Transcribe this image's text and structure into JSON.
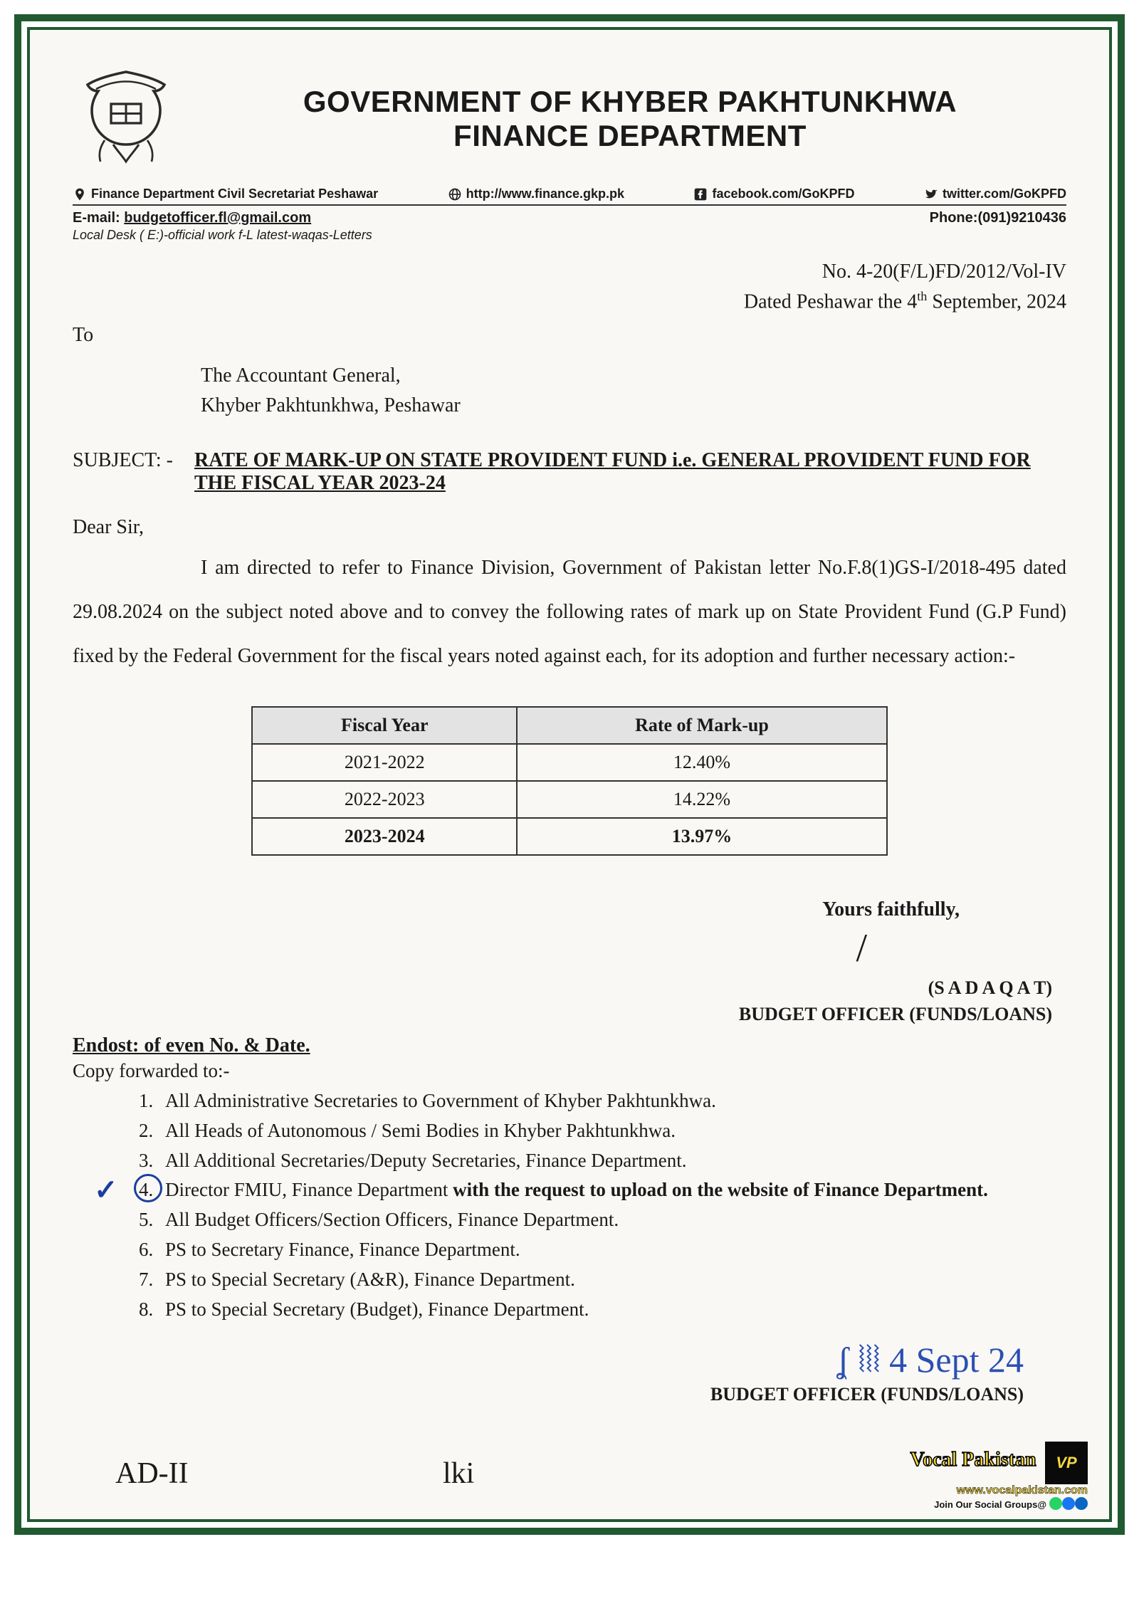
{
  "colors": {
    "border_green": "#1f5a31",
    "paper": "#f9f8f5",
    "text": "#1a1a1a",
    "ink_blue": "#2b4fb3",
    "table_header_bg": "#e3e3e3",
    "watermark_yellow": "#f5d742"
  },
  "header": {
    "title_line1": "GOVERNMENT OF KHYBER PAKHTUNKHWA",
    "title_line2": "FINANCE DEPARTMENT",
    "contacts": {
      "address": "Finance Department Civil Secretariat Peshawar",
      "website": "http://www.finance.gkp.pk",
      "facebook": "facebook.com/GoKPFD",
      "twitter": "twitter.com/GoKPFD"
    },
    "email_label": "E-mail:",
    "email": "budgetofficer.fl@gmail.com",
    "phone_label": "Phone:",
    "phone": "(091)9210436",
    "local_desk": "Local Desk ( E:)-official work f-L latest-waqas-Letters"
  },
  "reference": {
    "no": "No. 4-20(F/L)FD/2012/Vol-IV",
    "dated_prefix": "Dated Peshawar the 4",
    "dated_suffix": " September, 2024"
  },
  "to": {
    "label": "To",
    "line1": "The Accountant General,",
    "line2": "Khyber Pakhtunkhwa, Peshawar"
  },
  "subject": {
    "label": "SUBJECT: -",
    "text": "RATE OF MARK-UP ON STATE PROVIDENT FUND i.e. GENERAL PROVIDENT FUND FOR THE FISCAL YEAR 2023-24"
  },
  "salutation": "Dear Sir,",
  "body": "I am directed to refer to Finance Division, Government of Pakistan letter No.F.8(1)GS-I/2018-495 dated 29.08.2024 on the subject noted above and to convey the following rates of mark up on State Provident Fund (G.P Fund) fixed by the Federal Government for the fiscal years noted against each, for its adoption and further necessary action:-",
  "table": {
    "columns": [
      "Fiscal Year",
      "Rate of Mark-up"
    ],
    "rows": [
      {
        "year": "2021-2022",
        "rate": "12.40%",
        "bold": false
      },
      {
        "year": "2022-2023",
        "rate": "14.22%",
        "bold": false
      },
      {
        "year": "2023-2024",
        "rate": "13.97%",
        "bold": true
      }
    ]
  },
  "closing": "Yours faithfully,",
  "signatory": {
    "name": "(S A D A Q A T)",
    "title": "BUDGET OFFICER (FUNDS/LOANS)"
  },
  "endorsement": {
    "heading": "Endost: of even No. & Date.",
    "copy_label": "Copy forwarded to:-",
    "items": [
      {
        "text": "All Administrative Secretaries to Government of Khyber Pakhtunkhwa."
      },
      {
        "text": "All Heads of Autonomous / Semi Bodies in Khyber Pakhtunkhwa."
      },
      {
        "text": "All Additional Secretaries/Deputy Secretaries, Finance Department."
      },
      {
        "prefix": "Director FMIU, Finance Department ",
        "bold": "with the request to upload on the website of Finance Department.",
        "circled": true
      },
      {
        "text": "All Budget Officers/Section Officers, Finance Department."
      },
      {
        "text": "PS to Secretary Finance, Finance Department."
      },
      {
        "text": "PS to Special Secretary (A&R), Finance Department."
      },
      {
        "text": "PS to Special Secretary (Budget), Finance Department."
      }
    ]
  },
  "signature2": {
    "scrawl": "4 Sept 24",
    "title": "BUDGET OFFICER (FUNDS/LOANS)"
  },
  "handwriting": {
    "left": "AD-II",
    "mid": "lki"
  },
  "watermark": {
    "brand": "Vocal Pakistan",
    "url": "www.vocalpakistan.com",
    "join": "Join Our Social Groups@",
    "social_colors": [
      "#25d366",
      "#1877f2",
      "#0a66c2"
    ]
  }
}
